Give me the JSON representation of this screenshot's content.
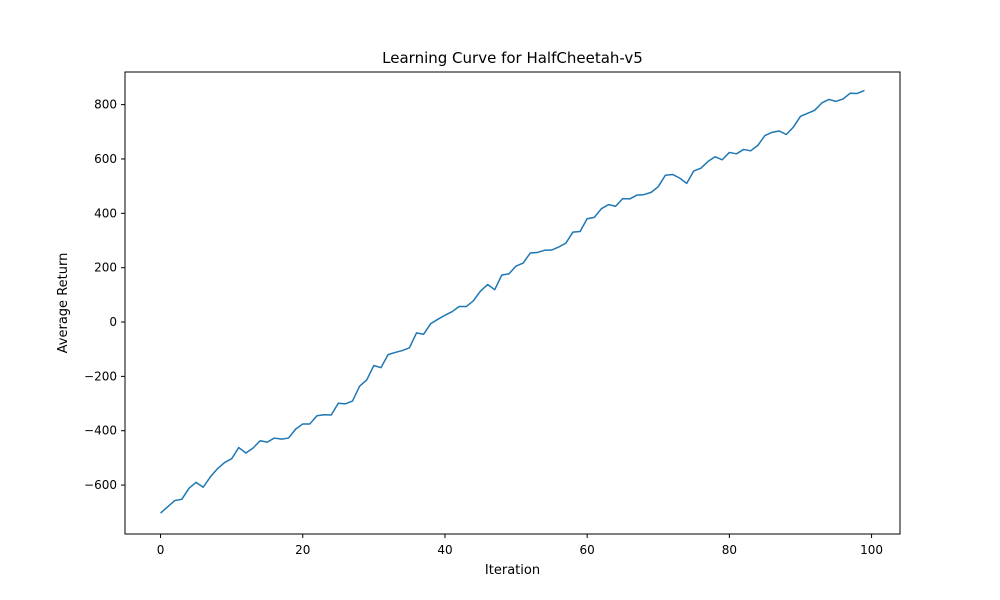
{
  "chart_data": {
    "type": "line",
    "title": "Learning Curve for HalfCheetah-v5",
    "xlabel": "Iteration",
    "ylabel": "Average Return",
    "xlim": [
      -5,
      104
    ],
    "ylim": [
      -780,
      920
    ],
    "xticks": [
      0,
      20,
      40,
      60,
      80,
      100
    ],
    "yticks": [
      -600,
      -400,
      -200,
      0,
      200,
      400,
      600,
      800
    ],
    "grid": false,
    "series": [
      {
        "color": "#1f77b4",
        "x": [
          0,
          1,
          2,
          3,
          4,
          5,
          6,
          7,
          8,
          9,
          10,
          11,
          12,
          13,
          14,
          15,
          16,
          17,
          18,
          19,
          20,
          21,
          22,
          23,
          24,
          25,
          26,
          27,
          28,
          29,
          30,
          31,
          32,
          33,
          34,
          35,
          36,
          37,
          38,
          39,
          40,
          41,
          42,
          43,
          44,
          45,
          46,
          47,
          48,
          49,
          50,
          51,
          52,
          53,
          54,
          55,
          56,
          57,
          58,
          59,
          60,
          61,
          62,
          63,
          64,
          65,
          66,
          67,
          68,
          69,
          70,
          71,
          72,
          73,
          74,
          75,
          76,
          77,
          78,
          79,
          80,
          81,
          82,
          83,
          84,
          85,
          86,
          87,
          88,
          89,
          90,
          91,
          92,
          93,
          94,
          95,
          96,
          97,
          98,
          99
        ],
        "values": [
          -703,
          -680,
          -657,
          -652,
          -612,
          -590,
          -608,
          -570,
          -540,
          -517,
          -503,
          -462,
          -482,
          -464,
          -437,
          -442,
          -427,
          -431,
          -427,
          -394,
          -375,
          -375,
          -345,
          -341,
          -342,
          -299,
          -301,
          -291,
          -236,
          -213,
          -160,
          -168,
          -120,
          -112,
          -105,
          -95,
          -40,
          -45,
          -6,
          10,
          25,
          38,
          57,
          57,
          78,
          114,
          138,
          119,
          173,
          177,
          206,
          217,
          254,
          256,
          264,
          265,
          276,
          290,
          331,
          333,
          380,
          385,
          417,
          432,
          426,
          454,
          453,
          467,
          469,
          477,
          498,
          540,
          543,
          530,
          510,
          556,
          566,
          591,
          608,
          597,
          624,
          619,
          635,
          630,
          650,
          686,
          698,
          703,
          690,
          717,
          757,
          768,
          779,
          806,
          819,
          812,
          821,
          842,
          841,
          852
        ]
      }
    ]
  }
}
